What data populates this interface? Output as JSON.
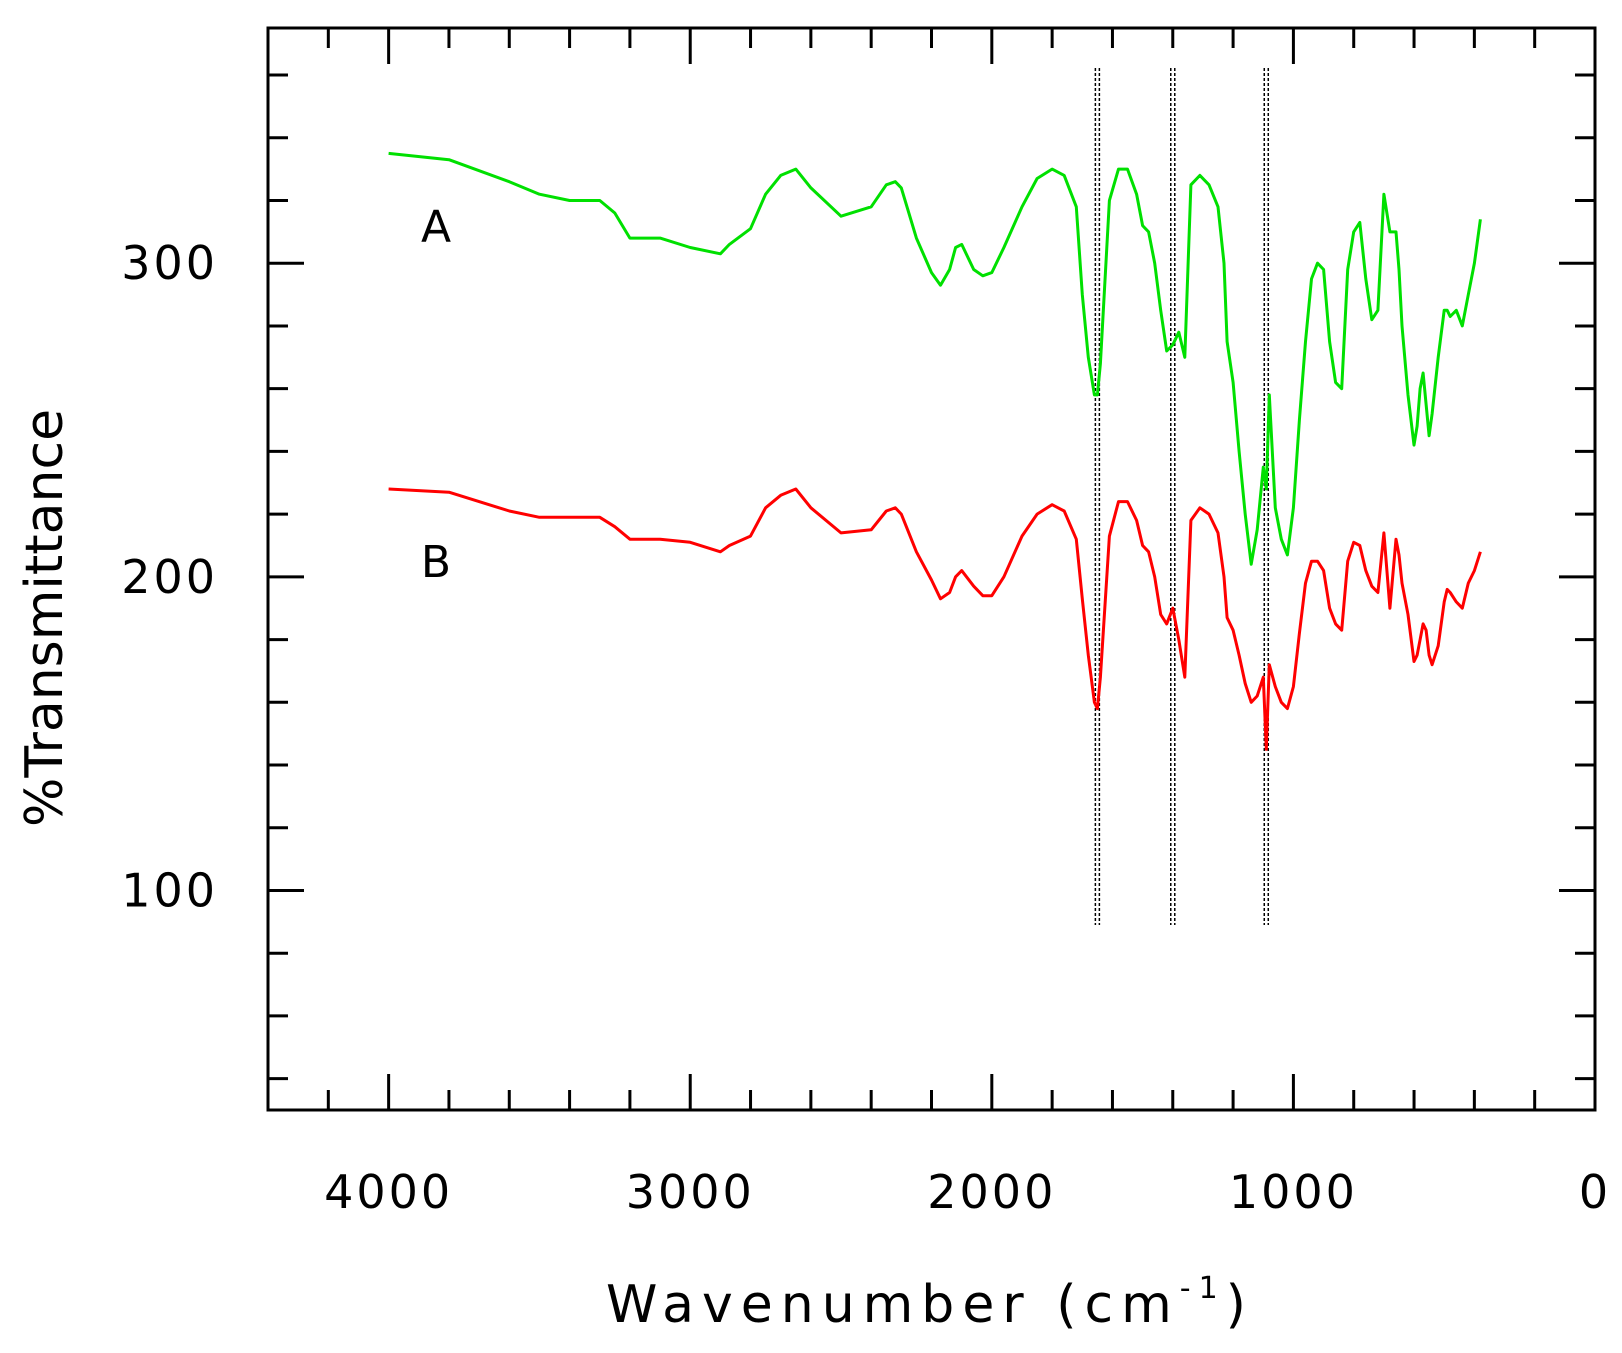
{
  "chart_data": {
    "type": "line",
    "xlabel": "Wavenumber (cm",
    "xlabel_superscript": "-1",
    "xlabel_close": ")",
    "ylabel": "%Transmittance",
    "xlim": [
      4400,
      0
    ],
    "ylim": [
      30,
      375
    ],
    "x_ticks": [
      4000,
      3000,
      2000,
      1000,
      0
    ],
    "y_ticks": [
      100,
      200,
      300
    ],
    "grid": false,
    "legend": "none",
    "vertical_markers": [
      1650,
      1400,
      1090
    ],
    "series": [
      {
        "name": "A",
        "color": "#00e000",
        "x": [
          4000,
          3800,
          3600,
          3500,
          3400,
          3300,
          3250,
          3200,
          3100,
          3000,
          2900,
          2870,
          2800,
          2750,
          2700,
          2650,
          2600,
          2500,
          2400,
          2350,
          2320,
          2300,
          2250,
          2200,
          2170,
          2140,
          2120,
          2100,
          2060,
          2030,
          2000,
          1960,
          1900,
          1850,
          1800,
          1760,
          1720,
          1700,
          1680,
          1660,
          1650,
          1640,
          1610,
          1580,
          1550,
          1520,
          1500,
          1480,
          1460,
          1440,
          1420,
          1400,
          1380,
          1360,
          1340,
          1310,
          1280,
          1250,
          1230,
          1220,
          1200,
          1180,
          1160,
          1140,
          1120,
          1100,
          1090,
          1080,
          1060,
          1040,
          1020,
          1000,
          980,
          960,
          940,
          920,
          900,
          880,
          860,
          840,
          820,
          800,
          780,
          760,
          740,
          720,
          700,
          680,
          660,
          650,
          640,
          620,
          600,
          590,
          580,
          570,
          560,
          550,
          540,
          520,
          500,
          490,
          480,
          460,
          440,
          420,
          400,
          380
        ],
        "values": [
          335,
          333,
          326,
          322,
          320,
          320,
          316,
          308,
          308,
          305,
          303,
          306,
          311,
          322,
          328,
          330,
          324,
          315,
          318,
          325,
          326,
          324,
          308,
          297,
          293,
          298,
          305,
          306,
          298,
          296,
          297,
          305,
          318,
          327,
          330,
          328,
          318,
          290,
          270,
          258,
          258,
          268,
          320,
          330,
          330,
          322,
          312,
          310,
          300,
          285,
          272,
          274,
          278,
          270,
          325,
          328,
          325,
          318,
          300,
          275,
          262,
          240,
          220,
          204,
          215,
          235,
          228,
          258,
          222,
          212,
          207,
          222,
          250,
          275,
          295,
          300,
          298,
          275,
          262,
          260,
          298,
          310,
          313,
          295,
          282,
          285,
          322,
          310,
          310,
          298,
          280,
          258,
          242,
          248,
          260,
          265,
          255,
          245,
          252,
          270,
          285,
          285,
          283,
          285,
          280,
          290,
          300,
          314
        ]
      },
      {
        "name": "B",
        "color": "#ff0000",
        "x": [
          4000,
          3800,
          3600,
          3500,
          3400,
          3300,
          3250,
          3200,
          3100,
          3000,
          2900,
          2870,
          2800,
          2750,
          2700,
          2650,
          2600,
          2500,
          2400,
          2350,
          2320,
          2300,
          2250,
          2200,
          2170,
          2140,
          2120,
          2100,
          2060,
          2030,
          2000,
          1960,
          1900,
          1850,
          1800,
          1760,
          1720,
          1700,
          1680,
          1660,
          1650,
          1640,
          1610,
          1580,
          1550,
          1520,
          1500,
          1480,
          1460,
          1440,
          1420,
          1400,
          1380,
          1360,
          1340,
          1310,
          1280,
          1250,
          1230,
          1220,
          1200,
          1180,
          1160,
          1140,
          1120,
          1100,
          1090,
          1080,
          1060,
          1040,
          1020,
          1000,
          980,
          960,
          940,
          920,
          900,
          880,
          860,
          840,
          820,
          800,
          780,
          760,
          740,
          720,
          700,
          680,
          660,
          650,
          640,
          620,
          600,
          590,
          580,
          570,
          560,
          550,
          540,
          520,
          500,
          490,
          480,
          460,
          440,
          420,
          400,
          380
        ],
        "values": [
          228,
          227,
          221,
          219,
          219,
          219,
          216,
          212,
          212,
          211,
          208,
          210,
          213,
          222,
          226,
          228,
          222,
          214,
          215,
          221,
          222,
          220,
          208,
          199,
          193,
          195,
          200,
          202,
          197,
          194,
          194,
          200,
          213,
          220,
          223,
          221,
          212,
          193,
          175,
          160,
          158,
          168,
          213,
          224,
          224,
          218,
          210,
          208,
          200,
          188,
          185,
          190,
          180,
          168,
          218,
          222,
          220,
          214,
          200,
          187,
          183,
          175,
          166,
          160,
          162,
          168,
          145,
          172,
          165,
          160,
          158,
          165,
          182,
          198,
          205,
          205,
          202,
          190,
          185,
          183,
          205,
          211,
          210,
          202,
          197,
          195,
          214,
          190,
          212,
          207,
          198,
          188,
          173,
          175,
          180,
          185,
          183,
          175,
          172,
          178,
          192,
          196,
          195,
          192,
          190,
          198,
          202,
          208
        ]
      }
    ]
  }
}
